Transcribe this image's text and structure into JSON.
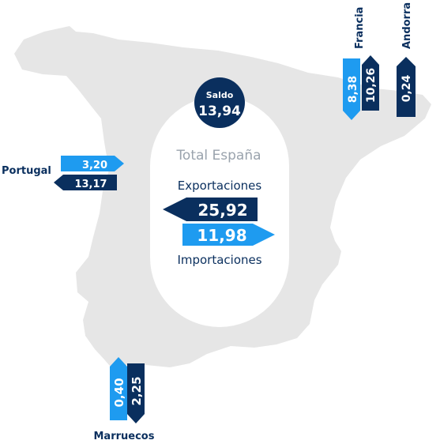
{
  "colors": {
    "map_fill": "#e6e6e6",
    "center_bubble": "#ffffff",
    "dark_navy": "#0a2f5e",
    "bright_blue": "#1e9bf0",
    "label_navy": "#0a2f5e",
    "muted_text": "#9aa3ad"
  },
  "saldo": {
    "label": "Saldo",
    "value": "13,94"
  },
  "total": {
    "title": "Total España",
    "exportaciones_label": "Exportaciones",
    "exportaciones_value": "25,92",
    "importaciones_value": "11,98",
    "importaciones_label": "Importaciones"
  },
  "portugal": {
    "name": "Portugal",
    "light_value": "3,20",
    "dark_value": "13,17"
  },
  "francia": {
    "name": "Francia",
    "light_value": "8,38",
    "dark_value": "10,26"
  },
  "andorra": {
    "name": "Andorra",
    "dark_value": "0,24"
  },
  "marruecos": {
    "name": "Marruecos",
    "light_value": "0,40",
    "dark_value": "2,25"
  }
}
